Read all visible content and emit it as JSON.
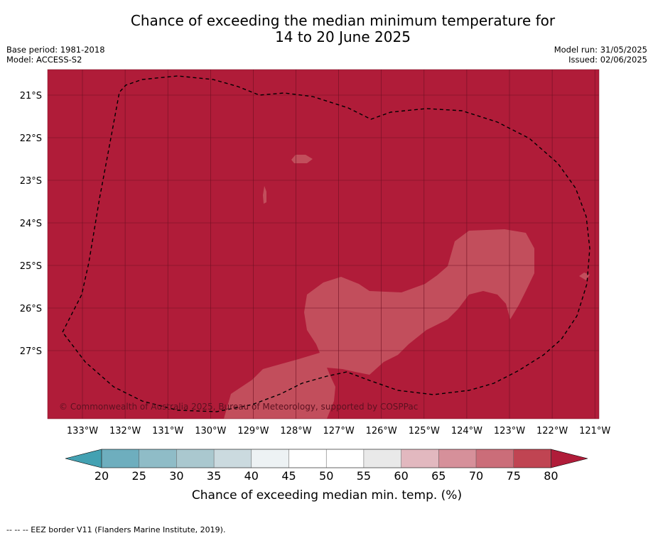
{
  "title_line1": "Chance of exceeding the median minimum temperature for",
  "title_line2": "14 to 20 June 2025",
  "base_period": "Base period: 1981-2018",
  "model": "Model: ACCESS-S2",
  "model_run": "Model run: 31/05/2025",
  "issued": "Issued: 02/06/2025",
  "copyright": "© Commonwealth of Australia 2025, Bureau of Meteorology, supported by COSPPac",
  "footer": "--  --  -- EEZ border V11 (Flanders Marine Institute, 2019).",
  "map": {
    "lat_labels": [
      "21°S",
      "22°S",
      "23°S",
      "24°S",
      "25°S",
      "26°S",
      "27°S"
    ],
    "lon_labels": [
      "133°W",
      "132°W",
      "131°W",
      "130°W",
      "129°W",
      "128°W",
      "127°W",
      "126°W",
      "125°W",
      "124°W",
      "123°W",
      "122°W",
      "121°W"
    ],
    "background_color": "#b01c39",
    "zone_70_75_color": "#c24e5c",
    "zone_65_70_color": "#d4878f"
  },
  "colorbar": {
    "label": "Chance of exceeding median min. temp. (%)",
    "ticks": [
      "20",
      "25",
      "30",
      "35",
      "40",
      "45",
      "50",
      "55",
      "60",
      "65",
      "70",
      "75",
      "80"
    ],
    "colors": [
      "#43a1b2",
      "#6eaebe",
      "#8fbcc7",
      "#aac8cf",
      "#cbdadf",
      "#edf2f4",
      "#ffffff",
      "#ffffff",
      "#e9e9e9",
      "#e2b8bf",
      "#d6909a",
      "#cb6d79",
      "#c04452",
      "#b01c39"
    ]
  }
}
